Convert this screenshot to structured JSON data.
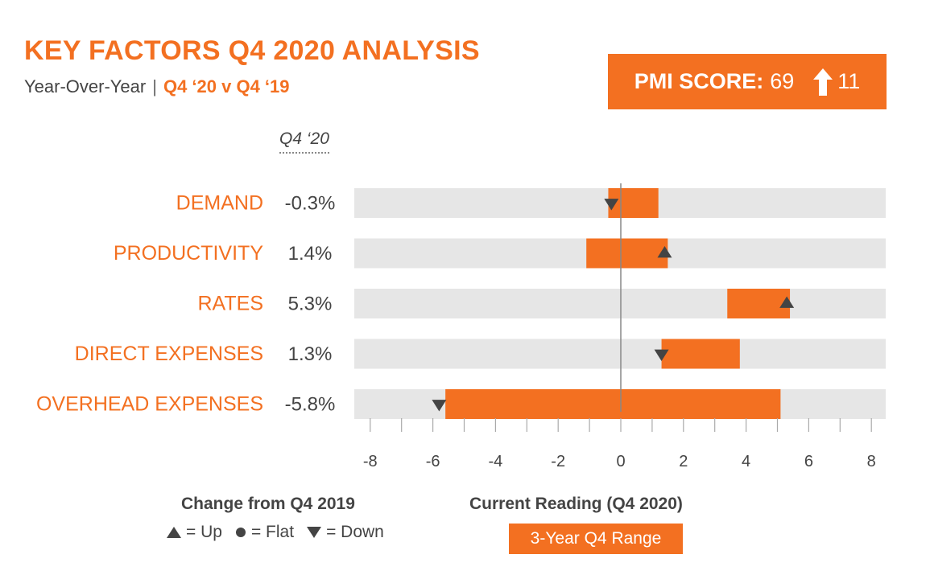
{
  "header": {
    "title": "KEY FACTORS Q4 2020 ANALYSIS",
    "subtitle_prefix": "Year-Over-Year",
    "subtitle_separator": "|",
    "subtitle_compare": "Q4 ‘20 v Q4 ‘19"
  },
  "pmi": {
    "label": "PMI SCORE:",
    "score": "69",
    "change": "11",
    "change_direction": "up"
  },
  "table": {
    "column_header": "Q4 ‘20"
  },
  "colors": {
    "accent": "#f37021",
    "track": "#e6e6e6",
    "marker": "#444444",
    "text": "#444444",
    "axis": "#888888"
  },
  "chart_data": {
    "type": "bar",
    "orientation": "horizontal",
    "description_type": "floating range bars with change markers",
    "xlim": [
      -9,
      8.5
    ],
    "ticks": [
      -8,
      -6,
      -4,
      -2,
      0,
      2,
      4,
      6,
      8
    ],
    "tick_labels": [
      "-8",
      "-6",
      "-4",
      "-2",
      "0",
      "2",
      "4",
      "6",
      "8"
    ],
    "categories": [
      "DEMAND",
      "PRODUCTIVITY",
      "RATES",
      "DIRECT EXPENSES",
      "OVERHEAD EXPENSES"
    ],
    "current_labels": [
      "-0.3%",
      "1.4%",
      "5.3%",
      "1.3%",
      "-5.8%"
    ],
    "current_values": [
      -0.3,
      1.4,
      5.3,
      1.3,
      -5.8
    ],
    "range_low": [
      -0.4,
      -1.1,
      3.4,
      1.3,
      -5.6
    ],
    "range_high": [
      1.2,
      1.5,
      5.4,
      3.8,
      5.1
    ],
    "change": [
      "down",
      "up",
      "up",
      "down",
      "down"
    ],
    "grid": false
  },
  "legend": {
    "change_title": "Change from Q4 2019",
    "up_label": "= Up",
    "flat_label": "= Flat",
    "down_label": "= Down",
    "current_title": "Current Reading (Q4 2020)",
    "range_label": "3-Year Q4 Range"
  }
}
